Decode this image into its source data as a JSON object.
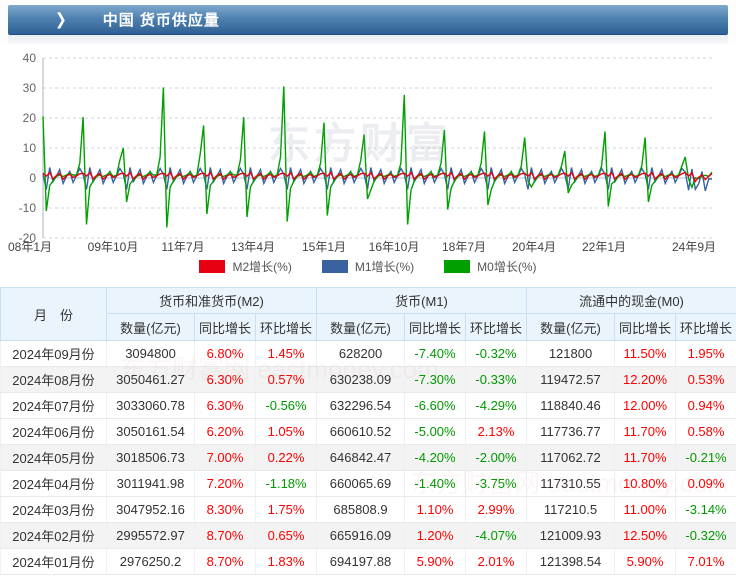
{
  "header": {
    "title": "中国 货币供应量",
    "chevron_icon": "❯"
  },
  "watermarks": {
    "chart": "东方财富",
    "table": "东方财富网 eastmoney.com"
  },
  "chart_data": {
    "type": "line",
    "title": "中国 货币供应量",
    "ylim": [
      -20,
      40
    ],
    "yticks": [
      40,
      30,
      20,
      10,
      0,
      -10,
      -20
    ],
    "grid": true,
    "legend_position": "bottom",
    "x_tick_labels": [
      "08年1月",
      "09年10月",
      "11年7月",
      "13年4月",
      "15年1月",
      "16年10月",
      "18年7月",
      "20年4月",
      "22年1月",
      "24年9月"
    ],
    "series": [
      {
        "name": "M2增长(%)",
        "color": "#e60012",
        "values_by_year": [
          [
            1.6,
            0.6,
            1.8,
            -0.3,
            0.8,
            1.5,
            -0.4,
            0.7,
            1.2,
            0.2,
            0.7,
            1.4
          ],
          [
            1.6,
            0.6,
            1.8,
            -0.3,
            0.8,
            1.5,
            -0.4,
            0.7,
            1.2,
            0.2,
            0.7,
            1.4
          ],
          [
            1.6,
            0.6,
            1.8,
            -0.3,
            0.8,
            1.5,
            -0.4,
            0.7,
            1.2,
            0.2,
            0.7,
            1.4
          ],
          [
            1.6,
            0.6,
            1.8,
            -0.3,
            0.8,
            1.5,
            -0.4,
            0.7,
            1.2,
            0.2,
            0.7,
            1.4
          ],
          [
            1.6,
            0.6,
            1.8,
            -0.3,
            0.8,
            1.5,
            -0.4,
            0.7,
            1.2,
            0.2,
            0.7,
            1.4
          ],
          [
            1.6,
            0.6,
            1.8,
            -0.3,
            0.8,
            1.5,
            -0.4,
            0.7,
            1.2,
            0.2,
            0.7,
            1.4
          ],
          [
            1.6,
            0.6,
            1.8,
            -0.3,
            0.8,
            1.5,
            -0.4,
            0.7,
            1.2,
            0.2,
            0.7,
            1.4
          ],
          [
            1.6,
            0.6,
            1.8,
            -0.3,
            0.8,
            1.5,
            -0.4,
            0.7,
            1.2,
            0.2,
            0.7,
            1.4
          ],
          [
            1.6,
            0.6,
            1.8,
            -0.3,
            0.8,
            1.5,
            -0.4,
            0.7,
            1.2,
            0.2,
            0.7,
            1.4
          ],
          [
            1.6,
            0.6,
            1.8,
            -0.3,
            0.8,
            1.5,
            -0.4,
            0.7,
            1.2,
            0.2,
            0.7,
            1.4
          ],
          [
            1.6,
            0.6,
            1.8,
            -0.3,
            0.8,
            1.5,
            -0.4,
            0.7,
            1.2,
            0.2,
            0.7,
            1.4
          ],
          [
            1.6,
            0.6,
            1.8,
            -0.3,
            0.8,
            1.5,
            -0.4,
            0.7,
            1.2,
            0.2,
            0.7,
            1.4
          ],
          [
            1.6,
            0.6,
            1.8,
            -0.3,
            0.8,
            1.5,
            -0.4,
            0.7,
            1.2,
            0.2,
            0.7,
            1.4
          ],
          [
            1.6,
            0.6,
            1.8,
            -0.3,
            0.8,
            1.5,
            -0.4,
            0.7,
            1.2,
            0.2,
            0.7,
            1.4
          ],
          [
            1.6,
            0.6,
            1.8,
            -0.3,
            0.8,
            1.5,
            -0.4,
            0.7,
            1.2,
            0.2,
            0.7,
            1.4
          ],
          [
            1.6,
            0.6,
            1.8,
            -0.3,
            0.8,
            1.5,
            -0.4,
            0.7,
            1.2,
            0.2,
            0.7,
            1.4
          ],
          [
            1.83,
            0.65,
            1.75,
            -1.18,
            0.22,
            1.05,
            -0.56,
            0.57,
            1.45
          ]
        ]
      },
      {
        "name": "M1增长(%)",
        "color": "#3a62a0",
        "values_by_year": [
          [
            1.2,
            -3.8,
            3.5,
            -1.2,
            0.6,
            2.8,
            -1.8,
            0.5,
            2.2,
            -1.5,
            0.8,
            3.2
          ],
          [
            1.2,
            -3.8,
            3.5,
            -1.2,
            0.6,
            2.8,
            -1.8,
            0.5,
            2.2,
            -1.5,
            0.8,
            3.2
          ],
          [
            1.2,
            -3.8,
            3.5,
            -1.2,
            0.6,
            2.8,
            -1.8,
            0.5,
            2.2,
            -1.5,
            0.8,
            3.2
          ],
          [
            1.2,
            -3.8,
            3.5,
            -1.2,
            0.6,
            2.8,
            -1.8,
            0.5,
            2.2,
            -1.5,
            0.8,
            3.2
          ],
          [
            1.2,
            -3.8,
            3.5,
            -1.2,
            0.6,
            2.8,
            -1.8,
            0.5,
            2.2,
            -1.5,
            0.8,
            3.2
          ],
          [
            1.2,
            -3.8,
            3.5,
            -1.2,
            0.6,
            2.8,
            -1.8,
            0.5,
            2.2,
            -1.5,
            0.8,
            3.2
          ],
          [
            1.2,
            -3.8,
            3.5,
            -1.2,
            0.6,
            2.8,
            -1.8,
            0.5,
            2.2,
            -1.5,
            0.8,
            3.2
          ],
          [
            1.2,
            -3.8,
            3.5,
            -1.2,
            0.6,
            2.8,
            -1.8,
            0.5,
            2.2,
            -1.5,
            0.8,
            3.2
          ],
          [
            1.2,
            -3.8,
            3.5,
            -1.2,
            0.6,
            2.8,
            -1.8,
            0.5,
            2.2,
            -1.5,
            0.8,
            3.2
          ],
          [
            1.2,
            -3.8,
            3.5,
            -1.2,
            0.6,
            2.8,
            -1.8,
            0.5,
            2.2,
            -1.5,
            0.8,
            3.2
          ],
          [
            1.2,
            -3.8,
            3.5,
            -1.2,
            0.6,
            2.8,
            -1.8,
            0.5,
            2.2,
            -1.5,
            0.8,
            3.2
          ],
          [
            1.2,
            -3.8,
            3.5,
            -1.2,
            0.6,
            2.8,
            -1.8,
            0.5,
            2.2,
            -1.5,
            0.8,
            3.2
          ],
          [
            1.2,
            -3.8,
            3.5,
            -1.2,
            0.6,
            2.8,
            -1.8,
            0.5,
            2.2,
            -1.5,
            0.8,
            3.2
          ],
          [
            1.2,
            -3.8,
            3.5,
            -1.2,
            0.6,
            2.8,
            -1.8,
            0.5,
            2.2,
            -1.5,
            0.8,
            3.2
          ],
          [
            1.2,
            -3.8,
            3.5,
            -1.2,
            0.6,
            2.8,
            -1.8,
            0.5,
            2.2,
            -1.5,
            0.8,
            3.2
          ],
          [
            1.2,
            -3.8,
            3.5,
            -1.2,
            0.6,
            2.8,
            -1.8,
            0.5,
            2.2,
            -1.5,
            0.8,
            3.2
          ],
          [
            2.01,
            -4.07,
            2.99,
            -3.75,
            -2.0,
            2.13,
            -4.29,
            -0.33,
            -0.32
          ]
        ]
      },
      {
        "name": "M0增长(%)",
        "color": "#00a000",
        "values_by_year": [
          [
            20.5,
            -11,
            -2.5,
            -1,
            0.5,
            1,
            0.5,
            1,
            1.5,
            1,
            1,
            5
          ],
          [
            20.3,
            -15.5,
            -3,
            -1,
            0.5,
            1,
            0.5,
            1,
            2,
            0.5,
            1,
            6
          ],
          [
            10,
            -8,
            -2,
            -0.5,
            0.5,
            1,
            0.5,
            1,
            2,
            1,
            1,
            7
          ],
          [
            30.2,
            -16.5,
            -3,
            -1,
            0.5,
            1,
            0.5,
            1,
            2,
            0.5,
            1,
            8
          ],
          [
            17.5,
            -12,
            -2.5,
            -1,
            0.5,
            1,
            0.5,
            1,
            2,
            1,
            1,
            6
          ],
          [
            20.3,
            -13,
            -3,
            -1,
            0.5,
            1,
            0.5,
            1,
            2,
            0.5,
            1,
            7
          ],
          [
            30.5,
            -14.5,
            -3.5,
            -1,
            0.5,
            1,
            0.5,
            1,
            2,
            0.5,
            1,
            5
          ],
          [
            18.5,
            -12.5,
            -3,
            -1,
            0.5,
            1,
            0.5,
            1,
            2,
            0.5,
            1,
            6
          ],
          [
            14.5,
            -7,
            -4,
            -1,
            0.5,
            1,
            0.5,
            1,
            1.5,
            0.5,
            1,
            5
          ],
          [
            27.7,
            -15.5,
            -4,
            -1,
            0.5,
            1,
            0.5,
            1,
            2,
            0.5,
            1,
            5
          ],
          [
            16,
            -10.5,
            -3.5,
            -1,
            0.5,
            1,
            0.5,
            1,
            2,
            0.5,
            1,
            5
          ],
          [
            15.5,
            -9,
            -4,
            -1,
            0.5,
            1,
            0.5,
            1,
            2,
            0.5,
            1,
            4
          ],
          [
            13.5,
            -1,
            -3,
            -1,
            0.5,
            1,
            0.5,
            1,
            1.5,
            0.5,
            1,
            4
          ],
          [
            9,
            -5,
            -2.5,
            -1,
            0.5,
            1,
            0.5,
            1,
            1.5,
            0.5,
            1,
            4
          ],
          [
            15.5,
            -9.5,
            -2,
            -1,
            0.5,
            1,
            0.5,
            1,
            1.5,
            0.5,
            1,
            4
          ],
          [
            13.5,
            -8,
            -2.5,
            -1,
            0.5,
            1,
            0.5,
            1,
            1.5,
            0.5,
            1,
            4
          ],
          [
            7.01,
            -0.32,
            -3.14,
            0.09,
            -0.21,
            0.58,
            0.94,
            0.53,
            1.95
          ]
        ]
      }
    ]
  },
  "table": {
    "month_header": "月　份",
    "groups": [
      "货币和准货币(M2)",
      "货币(M1)",
      "流通中的现金(M0)"
    ],
    "sub_headers": [
      "数量(亿元)",
      "同比增长",
      "环比增长"
    ],
    "up_color": "#ff0000",
    "down_color": "#009900",
    "rows": [
      {
        "month": "2024年09月份",
        "m2": [
          "3094800",
          "6.80%",
          "1.45%"
        ],
        "m1": [
          "628200",
          "-7.40%",
          "-0.32%"
        ],
        "m0": [
          "121800",
          "11.50%",
          "1.95%"
        ]
      },
      {
        "month": "2024年08月份",
        "m2": [
          "3050461.27",
          "6.30%",
          "0.57%"
        ],
        "m1": [
          "630238.09",
          "-7.30%",
          "-0.33%"
        ],
        "m0": [
          "119472.57",
          "12.20%",
          "0.53%"
        ]
      },
      {
        "month": "2024年07月份",
        "m2": [
          "3033060.78",
          "6.30%",
          "-0.56%"
        ],
        "m1": [
          "632296.54",
          "-6.60%",
          "-4.29%"
        ],
        "m0": [
          "118840.46",
          "12.00%",
          "0.94%"
        ]
      },
      {
        "month": "2024年06月份",
        "m2": [
          "3050161.54",
          "6.20%",
          "1.05%"
        ],
        "m1": [
          "660610.52",
          "-5.00%",
          "2.13%"
        ],
        "m0": [
          "117736.77",
          "11.70%",
          "0.58%"
        ]
      },
      {
        "month": "2024年05月份",
        "m2": [
          "3018506.73",
          "7.00%",
          "0.22%"
        ],
        "m1": [
          "646842.47",
          "-4.20%",
          "-2.00%"
        ],
        "m0": [
          "117062.72",
          "11.70%",
          "-0.21%"
        ]
      },
      {
        "month": "2024年04月份",
        "m2": [
          "3011941.98",
          "7.20%",
          "-1.18%"
        ],
        "m1": [
          "660065.69",
          "-1.40%",
          "-3.75%"
        ],
        "m0": [
          "117310.55",
          "10.80%",
          "0.09%"
        ]
      },
      {
        "month": "2024年03月份",
        "m2": [
          "3047952.16",
          "8.30%",
          "1.75%"
        ],
        "m1": [
          "685808.9",
          "1.10%",
          "2.99%"
        ],
        "m0": [
          "117210.5",
          "11.00%",
          "-3.14%"
        ]
      },
      {
        "month": "2024年02月份",
        "m2": [
          "2995572.97",
          "8.70%",
          "0.65%"
        ],
        "m1": [
          "665916.09",
          "1.20%",
          "-4.07%"
        ],
        "m0": [
          "121009.93",
          "12.50%",
          "-0.32%"
        ]
      },
      {
        "month": "2024年01月份",
        "m2": [
          "2976250.2",
          "8.70%",
          "1.83%"
        ],
        "m1": [
          "694197.88",
          "5.90%",
          "2.01%"
        ],
        "m0": [
          "121398.54",
          "5.90%",
          "7.01%"
        ]
      }
    ]
  }
}
